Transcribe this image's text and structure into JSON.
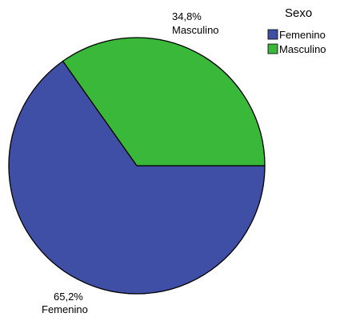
{
  "chart_data": {
    "type": "pie",
    "legend_title": "Sexo",
    "legend_position": "top-right",
    "categories": [
      "Femenino",
      "Masculino"
    ],
    "values": [
      65.2,
      34.8
    ],
    "value_labels": [
      "65,2%",
      "34,8%"
    ],
    "colors": [
      "#3f4fa6",
      "#3ab83a"
    ]
  }
}
